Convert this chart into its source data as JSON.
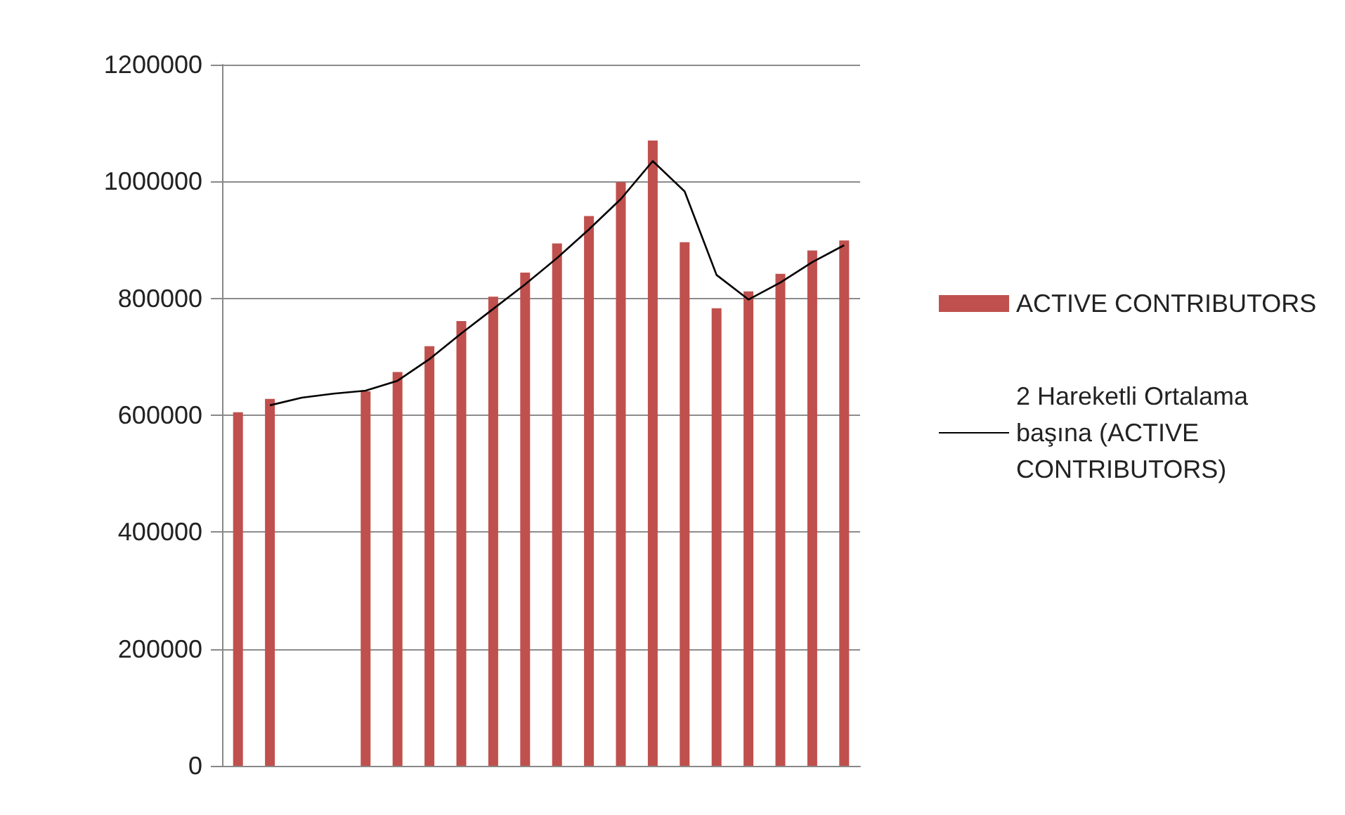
{
  "chart_data": {
    "type": "bar",
    "categories": [
      null,
      null,
      null,
      null,
      null,
      null,
      null,
      null,
      null,
      null,
      null,
      null,
      null,
      null,
      null,
      null,
      null,
      null,
      null,
      null
    ],
    "series": [
      {
        "name": "ACTIVE CONTRIBUTORS",
        "color": "#c0504d",
        "values": [
          605000,
          628000,
          null,
          null,
          641000,
          674000,
          718000,
          761000,
          803000,
          844000,
          894000,
          941000,
          999000,
          1070000,
          896000,
          783000,
          812000,
          842000,
          882000,
          899000
        ]
      },
      {
        "name": "2 Hareketli Ortalama başına (ACTIVE CONTRIBUTORS)",
        "type": "line",
        "color": "#000000",
        "values": [
          null,
          617000,
          630000,
          637000,
          642000,
          659000,
          696000,
          740000,
          782000,
          824000,
          869000,
          918000,
          970000,
          1035000,
          983000,
          840000,
          798000,
          827000,
          862000,
          891000
        ]
      }
    ],
    "ylim": [
      0,
      1200000
    ],
    "yticks": [
      0,
      200000,
      400000,
      600000,
      800000,
      1000000,
      1200000
    ],
    "grid": "y",
    "legend": "right",
    "marker": "none",
    "line_style": "solid"
  }
}
